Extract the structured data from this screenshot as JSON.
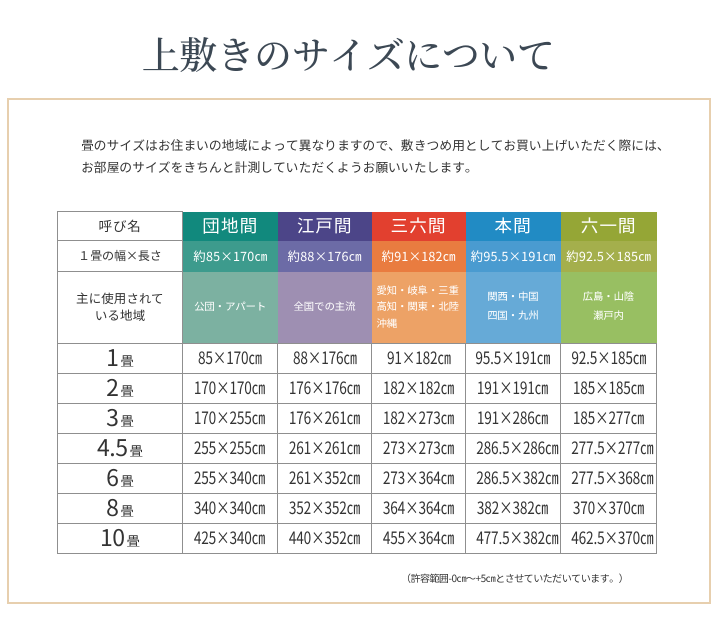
{
  "page": {
    "title": "上敷きのサイズについて",
    "intro_lines": [
      "畳のサイズはお住まいの地域によって異なりますので、敷きつめ用としてお買い上げいただく際には、",
      "お部屋のサイズをきちんと計測していただくようお願いいたします。"
    ],
    "footnote": "（許容範囲-0㎝～+5㎝とさせていただいています。）"
  },
  "table": {
    "corner_label": "呼び名",
    "size_row_label": "１畳の幅×長さ",
    "region_row_label_lines": [
      "主に使用されて",
      "いる地域"
    ],
    "columns": [
      {
        "id": "danchima",
        "name": "団地間",
        "size": "約85×170㎝",
        "region_lines": [
          "公団・アパート"
        ],
        "region_align": "center",
        "colors": {
          "header": "#11897d",
          "size": "#3d9b8d",
          "region": "#7cb1a1"
        }
      },
      {
        "id": "edoma",
        "name": "江戸間",
        "size": "約88×176㎝",
        "region_lines": [
          "全国での主流"
        ],
        "region_align": "center",
        "colors": {
          "header": "#4c4588",
          "size": "#6c6ba6",
          "region": "#9e8fb2"
        }
      },
      {
        "id": "saburokuma",
        "name": "三六間",
        "size": "約91×182㎝",
        "region_lines": [
          "愛知・岐阜・三重",
          "高知・関東・北陸",
          "沖縄"
        ],
        "region_align": "left",
        "colors": {
          "header": "#e2402f",
          "size": "#e97c40",
          "region": "#eda266"
        }
      },
      {
        "id": "honma",
        "name": "本間",
        "size": "約95.5×191㎝",
        "region_lines": [
          "関西・中国",
          "四国・九州"
        ],
        "region_align": "center",
        "colors": {
          "header": "#218bc4",
          "size": "#4a9bd0",
          "region": "#66aad7"
        }
      },
      {
        "id": "rokuichima",
        "name": "六一間",
        "size": "約92.5×185㎝",
        "region_lines": [
          "広島・山陰",
          "瀬戸内"
        ],
        "region_align": "center",
        "colors": {
          "header": "#95a636",
          "size": "#a4af4c",
          "region": "#98bf62"
        }
      }
    ],
    "rows": [
      {
        "label_number": "1",
        "label_suffix": "畳",
        "values": [
          "85×170㎝",
          "88×176㎝",
          "91×182㎝",
          "95.5×191㎝",
          "92.5×185㎝"
        ]
      },
      {
        "label_number": "2",
        "label_suffix": "畳",
        "values": [
          "170×170㎝",
          "176×176㎝",
          "182×182㎝",
          "191×191㎝",
          "185×185㎝"
        ]
      },
      {
        "label_number": "3",
        "label_suffix": "畳",
        "values": [
          "170×255㎝",
          "176×261㎝",
          "182×273㎝",
          "191×286㎝",
          "185×277㎝"
        ]
      },
      {
        "label_number": "4.5",
        "label_suffix": "畳",
        "values": [
          "255×255㎝",
          "261×261㎝",
          "273×273㎝",
          "286.5×286㎝",
          "277.5×277㎝"
        ]
      },
      {
        "label_number": "6",
        "label_suffix": "畳",
        "values": [
          "255×340㎝",
          "261×352㎝",
          "273×364㎝",
          "286.5×382㎝",
          "277.5×368㎝"
        ]
      },
      {
        "label_number": "8",
        "label_suffix": "畳",
        "values": [
          "340×340㎝",
          "352×352㎝",
          "364×364㎝",
          "382×382㎝",
          "370×370㎝"
        ]
      },
      {
        "label_number": "10",
        "label_suffix": "畳",
        "values": [
          "425×340㎝",
          "440×352㎝",
          "455×364㎝",
          "477.5×382㎝",
          "462.5×370㎝"
        ]
      }
    ]
  },
  "colors": {
    "page_bg": "#ffffff",
    "title_text": "#3c4854",
    "body_text": "#333333",
    "box_border": "#e7cfae",
    "grid_border": "#8f8f8f",
    "cell_text_light": "#ffffff"
  }
}
